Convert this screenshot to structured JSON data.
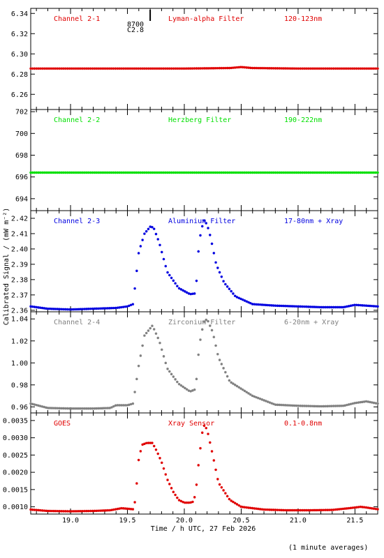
{
  "chart_data": {
    "type": "scatter",
    "ylabel": "Calibrated Signal / (mW m⁻²)",
    "xlabel": "Time / h UTC, 27 Feb 2026",
    "xlim": [
      18.65,
      21.7
    ],
    "x_ticks": [
      "19.0",
      "19.5",
      "20.0",
      "20.5",
      "21.0",
      "21.5"
    ],
    "x_tick_values": [
      19.0,
      19.5,
      20.0,
      20.5,
      21.0,
      21.5
    ],
    "annotation": {
      "x": 19.7,
      "lines": [
        "8700",
        "C2.8"
      ]
    },
    "panels": [
      {
        "name": "channel-2-1",
        "labels": [
          "Channel 2-1",
          "Lyman-alpha Filter",
          "120-123nm"
        ],
        "color": "#e00000",
        "ylim": [
          6.245,
          6.345
        ],
        "y_ticks": [
          "6.26",
          "6.28",
          "6.30",
          "6.32",
          "6.34"
        ],
        "y_tick_values": [
          6.26,
          6.28,
          6.3,
          6.32,
          6.34
        ],
        "series": [
          {
            "x": [
              18.65,
              19.0,
              19.5,
              20.0,
              20.4,
              20.5,
              20.6,
              21.0,
              21.5,
              21.7
            ],
            "y": [
              6.2855,
              6.2855,
              6.2855,
              6.2855,
              6.286,
              6.287,
              6.286,
              6.2855,
              6.2855,
              6.2855
            ]
          }
        ]
      },
      {
        "name": "channel-2-2",
        "labels": [
          "Channel 2-2",
          "Herzberg Filter",
          "190-222nm"
        ],
        "color": "#00e000",
        "ylim": [
          692.9,
          702.2
        ],
        "y_ticks": [
          "694",
          "696",
          "698",
          "700",
          "702"
        ],
        "y_tick_values": [
          694,
          696,
          698,
          700,
          702
        ],
        "series": [
          {
            "x": [
              18.65,
              19.0,
              19.5,
              20.0,
              20.5,
              21.0,
              21.5,
              21.7
            ],
            "y": [
              696.4,
              696.4,
              696.4,
              696.4,
              696.4,
              696.4,
              696.4,
              696.4
            ]
          }
        ]
      },
      {
        "name": "channel-2-3",
        "labels": [
          "Channel 2-3",
          "Aluminium Filter",
          "17-80nm + Xray"
        ],
        "color": "#0000e0",
        "ylim": [
          2.359,
          2.425
        ],
        "y_ticks": [
          "2.36",
          "2.37",
          "2.38",
          "2.39",
          "2.40",
          "2.41",
          "2.42"
        ],
        "y_tick_values": [
          2.36,
          2.37,
          2.38,
          2.39,
          2.4,
          2.41,
          2.42
        ],
        "series": [
          {
            "x": [
              18.65,
              18.8,
              19.0,
              19.2,
              19.4,
              19.5,
              19.55,
              19.6,
              19.65,
              19.7,
              19.73,
              19.78,
              19.85,
              19.95,
              20.05,
              20.1,
              20.13,
              20.17,
              20.2,
              20.23,
              20.28,
              20.35,
              20.45,
              20.6,
              20.8,
              21.0,
              21.2,
              21.4,
              21.5,
              21.6,
              21.7
            ],
            "y": [
              2.3625,
              2.361,
              2.3605,
              2.361,
              2.3615,
              2.3625,
              2.364,
              2.398,
              2.41,
              2.4145,
              2.414,
              2.404,
              2.385,
              2.3745,
              2.3705,
              2.371,
              2.405,
              2.419,
              2.416,
              2.408,
              2.39,
              2.378,
              2.369,
              2.364,
              2.363,
              2.3625,
              2.362,
              2.362,
              2.3635,
              2.363,
              2.3625
            ]
          }
        ]
      },
      {
        "name": "channel-2-4",
        "labels": [
          "Channel 2-4",
          "Zirconium Filter",
          "6-20nm + Xray"
        ],
        "color": "#808080",
        "ylim": [
          0.9545,
          1.0465
        ],
        "y_ticks": [
          "0.96",
          "0.98",
          "1.00",
          "1.02",
          "1.04"
        ],
        "y_tick_values": [
          0.96,
          0.98,
          1.0,
          1.02,
          1.04
        ],
        "series": [
          {
            "x": [
              18.65,
              18.8,
              19.0,
              19.2,
              19.35,
              19.4,
              19.5,
              19.55,
              19.6,
              19.65,
              19.72,
              19.78,
              19.85,
              19.95,
              20.05,
              20.1,
              20.13,
              20.17,
              20.2,
              20.25,
              20.3,
              20.4,
              20.6,
              20.8,
              21.0,
              21.2,
              21.4,
              21.5,
              21.6,
              21.7
            ],
            "y": [
              0.963,
              0.959,
              0.9585,
              0.9585,
              0.959,
              0.9615,
              0.9615,
              0.963,
              0.998,
              1.025,
              1.034,
              1.02,
              0.995,
              0.981,
              0.974,
              0.976,
              1.015,
              1.037,
              1.04,
              1.028,
              1.005,
              0.983,
              0.97,
              0.962,
              0.961,
              0.9605,
              0.961,
              0.9635,
              0.965,
              0.963
            ]
          }
        ]
      },
      {
        "name": "goes",
        "labels": [
          "GOES",
          "Xray Sensor",
          "0.1-0.8nm"
        ],
        "color": "#e00000",
        "ylim": [
          0.00079,
          0.00372
        ],
        "y_ticks": [
          "0.0010",
          "0.0015",
          "0.0020",
          "0.0025",
          "0.0030",
          "0.0035"
        ],
        "y_tick_values": [
          0.001,
          0.0015,
          0.002,
          0.0025,
          0.003,
          0.0035
        ],
        "series": [
          {
            "x": [
              18.65,
              18.8,
              19.0,
              19.2,
              19.35,
              19.45,
              19.55,
              19.57,
              19.6,
              19.63,
              19.67,
              19.72,
              19.76,
              19.8,
              19.85,
              19.9,
              19.95,
              20.0,
              20.05,
              20.08,
              20.1,
              20.13,
              20.16,
              20.18,
              20.21,
              20.25,
              20.3,
              20.4,
              20.5,
              20.7,
              20.9,
              21.1,
              21.3,
              21.45,
              21.55,
              21.6,
              21.7
            ],
            "y": [
              0.00092,
              0.00088,
              0.00087,
              0.00088,
              0.0009,
              0.00096,
              0.00093,
              0.0012,
              0.0024,
              0.0028,
              0.00285,
              0.00285,
              0.0026,
              0.0023,
              0.0018,
              0.00145,
              0.0012,
              0.00112,
              0.00112,
              0.00115,
              0.0014,
              0.0024,
              0.0032,
              0.0034,
              0.0031,
              0.0025,
              0.0017,
              0.0012,
              0.001,
              0.00092,
              0.0009,
              0.0009,
              0.00091,
              0.00096,
              0.001,
              0.00098,
              0.00093
            ]
          }
        ]
      }
    ],
    "footnote": "(1 minute averages)"
  }
}
